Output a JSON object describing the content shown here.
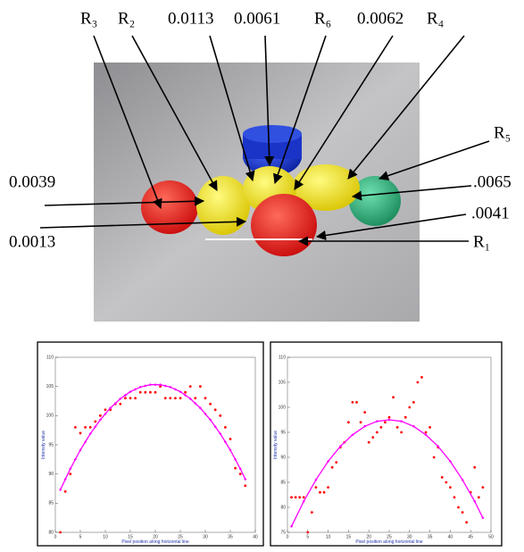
{
  "annotations": {
    "top": [
      "R₃",
      "R₂",
      "0.0113",
      "0.0061",
      "R₆",
      "0.0062",
      "R₄"
    ],
    "left": [
      "0.0039",
      "0.0013"
    ],
    "right": [
      "R₅",
      ".0065",
      ".0041",
      "R₁"
    ]
  },
  "chart_data": [
    {
      "type": "scatter",
      "xlabel": "Pixel position along horizontal line",
      "ylabel": "Intensity value",
      "xlim": [
        0,
        40
      ],
      "ylim": [
        80,
        110
      ],
      "xticks": [
        0,
        5,
        10,
        15,
        20,
        25,
        30,
        35,
        40
      ],
      "yticks": [
        80,
        85,
        90,
        95,
        100,
        105,
        110
      ],
      "series": [
        {
          "color": "#ff0000",
          "mode": "markers",
          "x": [
            1,
            2,
            3,
            4,
            5,
            6,
            7,
            8,
            9,
            10,
            11,
            12,
            13,
            14,
            15,
            16,
            17,
            18,
            19,
            20,
            21,
            22,
            23,
            24,
            25,
            26,
            27,
            28,
            29,
            30,
            31,
            32,
            33,
            34,
            35,
            36,
            37,
            38
          ],
          "values": [
            80,
            87,
            90,
            98,
            97,
            98,
            98,
            99,
            100,
            101,
            101,
            102,
            102,
            103,
            103,
            103,
            104,
            104,
            104,
            104,
            105,
            103,
            103,
            103,
            103,
            104,
            105,
            103,
            105,
            103,
            102,
            101,
            100,
            98,
            96,
            91,
            90,
            88
          ]
        },
        {
          "color": "#ff00ff",
          "mode": "lines+markers",
          "x": [
            1,
            2,
            3,
            4,
            5,
            6,
            7,
            8,
            9,
            10,
            11,
            12,
            13,
            14,
            15,
            16,
            17,
            18,
            19,
            20,
            21,
            22,
            23,
            24,
            25,
            26,
            27,
            28,
            29,
            30,
            31,
            32,
            33,
            34,
            35,
            36,
            37,
            38
          ],
          "values": [
            87.3,
            89.1,
            90.9,
            92.5,
            94.1,
            95.5,
            96.9,
            98.1,
            99.3,
            100.3,
            101.3,
            102.1,
            102.9,
            103.5,
            104.1,
            104.5,
            104.9,
            105.1,
            105.3,
            105.3,
            105.3,
            105.1,
            104.9,
            104.5,
            104.1,
            103.5,
            102.9,
            102.1,
            101.3,
            100.3,
            99.3,
            98.1,
            96.9,
            95.5,
            94.1,
            92.5,
            90.9,
            89.1
          ]
        }
      ]
    },
    {
      "type": "scatter",
      "xlabel": "Pixel position along horizontal line",
      "ylabel": "Intensity value",
      "xlim": [
        0,
        50
      ],
      "ylim": [
        75,
        110
      ],
      "xticks": [
        0,
        5,
        10,
        15,
        20,
        25,
        30,
        35,
        40,
        45,
        50
      ],
      "yticks": [
        75,
        80,
        85,
        90,
        95,
        100,
        105,
        110
      ],
      "series": [
        {
          "color": "#ff0000",
          "mode": "markers",
          "x": [
            1,
            2,
            3,
            4,
            5,
            6,
            7,
            8,
            9,
            10,
            11,
            12,
            13,
            14,
            15,
            16,
            17,
            18,
            19,
            20,
            21,
            22,
            23,
            24,
            25,
            26,
            27,
            28,
            29,
            30,
            31,
            32,
            33,
            34,
            35,
            36,
            37,
            38,
            39,
            40,
            41,
            42,
            43,
            44,
            45,
            46,
            47,
            48
          ],
          "values": [
            82,
            82,
            82,
            82,
            75,
            79,
            84,
            83,
            83,
            84,
            88,
            89,
            92,
            93,
            97,
            101,
            101,
            97,
            99,
            93,
            94,
            95,
            96,
            97,
            98,
            102,
            96,
            95,
            98,
            100,
            101,
            105,
            106,
            95,
            96,
            90,
            92,
            86,
            85,
            84,
            82,
            80,
            79,
            77,
            83,
            88,
            82,
            84
          ]
        },
        {
          "color": "#ff00ff",
          "mode": "lines+markers",
          "x": [
            1,
            4,
            7,
            10,
            13,
            16,
            19,
            22,
            25,
            28,
            31,
            34,
            37,
            40,
            43,
            46,
            48
          ],
          "values": [
            76.2,
            81.2,
            85.5,
            89.2,
            92.2,
            94.5,
            96.2,
            97.2,
            97.5,
            97.2,
            96.2,
            94.5,
            92.2,
            89.2,
            85.5,
            81.2,
            77.9
          ]
        }
      ]
    }
  ]
}
